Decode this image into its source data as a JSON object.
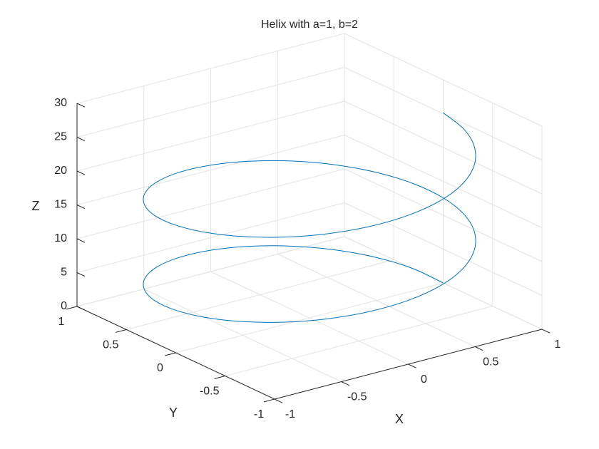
{
  "chart_data": {
    "type": "line3d",
    "title": "Helix with a=1, b=2",
    "xlabel": "X",
    "ylabel": "Y",
    "zlabel": "Z",
    "color": "#0072bd",
    "grid": true,
    "xlim": [
      -1,
      1
    ],
    "ylim": [
      -1,
      1
    ],
    "zlim": [
      0,
      30
    ],
    "xticks": [
      -1,
      -0.5,
      0,
      0.5,
      1
    ],
    "yticks": [
      -1,
      -0.5,
      0,
      0.5,
      1
    ],
    "zticks": [
      0,
      5,
      10,
      15,
      20,
      25,
      30
    ],
    "x": [
      1,
      0.966,
      0.866,
      0.707,
      0.5,
      0.259,
      0,
      -0.259,
      -0.5,
      -0.707,
      -0.866,
      -0.966,
      -1,
      -0.966,
      -0.866,
      -0.707,
      -0.5,
      -0.259,
      0,
      0.259,
      0.5,
      0.707,
      0.866,
      0.966,
      1,
      0.966,
      0.866,
      0.707,
      0.5,
      0.259,
      0,
      -0.259,
      -0.5,
      -0.707,
      -0.866,
      -0.966,
      -1,
      -0.966,
      -0.866,
      -0.707,
      -0.5,
      -0.259,
      0,
      0.259,
      0.5,
      0.707,
      0.866,
      0.966,
      1
    ],
    "y": [
      0,
      0.259,
      0.5,
      0.707,
      0.866,
      0.966,
      1,
      0.966,
      0.866,
      0.707,
      0.5,
      0.259,
      0,
      -0.259,
      -0.5,
      -0.707,
      -0.866,
      -0.966,
      -1,
      -0.966,
      -0.866,
      -0.707,
      -0.5,
      -0.259,
      0,
      0.259,
      0.5,
      0.707,
      0.866,
      0.966,
      1,
      0.966,
      0.866,
      0.707,
      0.5,
      0.259,
      0,
      -0.259,
      -0.5,
      -0.707,
      -0.866,
      -0.966,
      -1,
      -0.966,
      -0.866,
      -0.707,
      -0.5,
      -0.259,
      0
    ],
    "z": [
      0,
      0.524,
      1.047,
      1.571,
      2.094,
      2.618,
      3.142,
      3.665,
      4.189,
      4.712,
      5.236,
      5.76,
      6.283,
      6.807,
      7.33,
      7.854,
      8.378,
      8.901,
      9.425,
      9.948,
      10.472,
      10.996,
      11.519,
      12.043,
      12.566,
      13.09,
      13.614,
      14.137,
      14.661,
      15.184,
      15.708,
      16.232,
      16.755,
      17.279,
      17.802,
      18.326,
      18.85,
      19.373,
      19.897,
      20.42,
      20.944,
      21.468,
      21.991,
      22.515,
      23.038,
      23.562,
      24.086,
      24.609,
      25.133
    ]
  }
}
